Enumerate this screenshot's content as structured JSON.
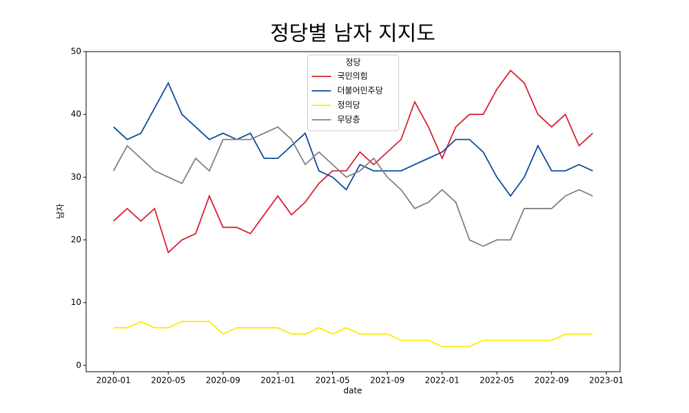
{
  "chart_data": {
    "type": "line",
    "title": "정당별 남자 지지도",
    "xlabel": "date",
    "ylabel": "남자",
    "legend_title": "정당",
    "legend": "upper center",
    "x": [
      "2020-01",
      "2020-02",
      "2020-03",
      "2020-04",
      "2020-05",
      "2020-06",
      "2020-07",
      "2020-08",
      "2020-09",
      "2020-10",
      "2020-11",
      "2020-12",
      "2021-01",
      "2021-02",
      "2021-03",
      "2021-04",
      "2021-05",
      "2021-06",
      "2021-07",
      "2021-08",
      "2021-09",
      "2021-10",
      "2021-11",
      "2021-12",
      "2022-01",
      "2022-02",
      "2022-03",
      "2022-04",
      "2022-05",
      "2022-06",
      "2022-07",
      "2022-08",
      "2022-09",
      "2022-10",
      "2022-11",
      "2022-12"
    ],
    "series": [
      {
        "name": "국민의힘",
        "color": "#d62030",
        "values": [
          23,
          25,
          23,
          25,
          18,
          20,
          21,
          27,
          22,
          22,
          21,
          24,
          27,
          24,
          26,
          29,
          31,
          31,
          34,
          32,
          34,
          36,
          42,
          38,
          33,
          38,
          40,
          40,
          44,
          47,
          45,
          40,
          38,
          40,
          35,
          37
        ]
      },
      {
        "name": "더불어민주당",
        "color": "#0a4a9a",
        "values": [
          38,
          36,
          37,
          41,
          45,
          40,
          38,
          36,
          37,
          36,
          37,
          33,
          33,
          35,
          37,
          31,
          30,
          28,
          32,
          31,
          31,
          31,
          32,
          33,
          34,
          36,
          36,
          34,
          30,
          27,
          30,
          35,
          31,
          31,
          32,
          31
        ]
      },
      {
        "name": "정의당",
        "color": "#ffea00",
        "values": [
          6,
          6,
          7,
          6,
          6,
          7,
          7,
          7,
          5,
          6,
          6,
          6,
          6,
          5,
          5,
          6,
          5,
          6,
          5,
          5,
          5,
          4,
          4,
          4,
          3,
          3,
          3,
          4,
          4,
          4,
          4,
          4,
          4,
          5,
          5,
          5
        ]
      },
      {
        "name": "무당층",
        "color": "#808080",
        "values": [
          31,
          35,
          33,
          31,
          30,
          29,
          33,
          31,
          36,
          36,
          36,
          37,
          38,
          36,
          32,
          34,
          32,
          30,
          31,
          33,
          30,
          28,
          25,
          26,
          28,
          26,
          20,
          19,
          20,
          20,
          25,
          25,
          25,
          27,
          28,
          27
        ]
      }
    ],
    "xlim": [
      "2019-11",
      "2023-02"
    ],
    "xticks": [
      "2020-01",
      "2020-05",
      "2020-09",
      "2021-01",
      "2021-05",
      "2021-09",
      "2022-01",
      "2022-05",
      "2022-09",
      "2023-01"
    ],
    "ylim": [
      -1,
      50
    ],
    "yticks": [
      0,
      10,
      20,
      30,
      40,
      50
    ],
    "grid": false
  }
}
